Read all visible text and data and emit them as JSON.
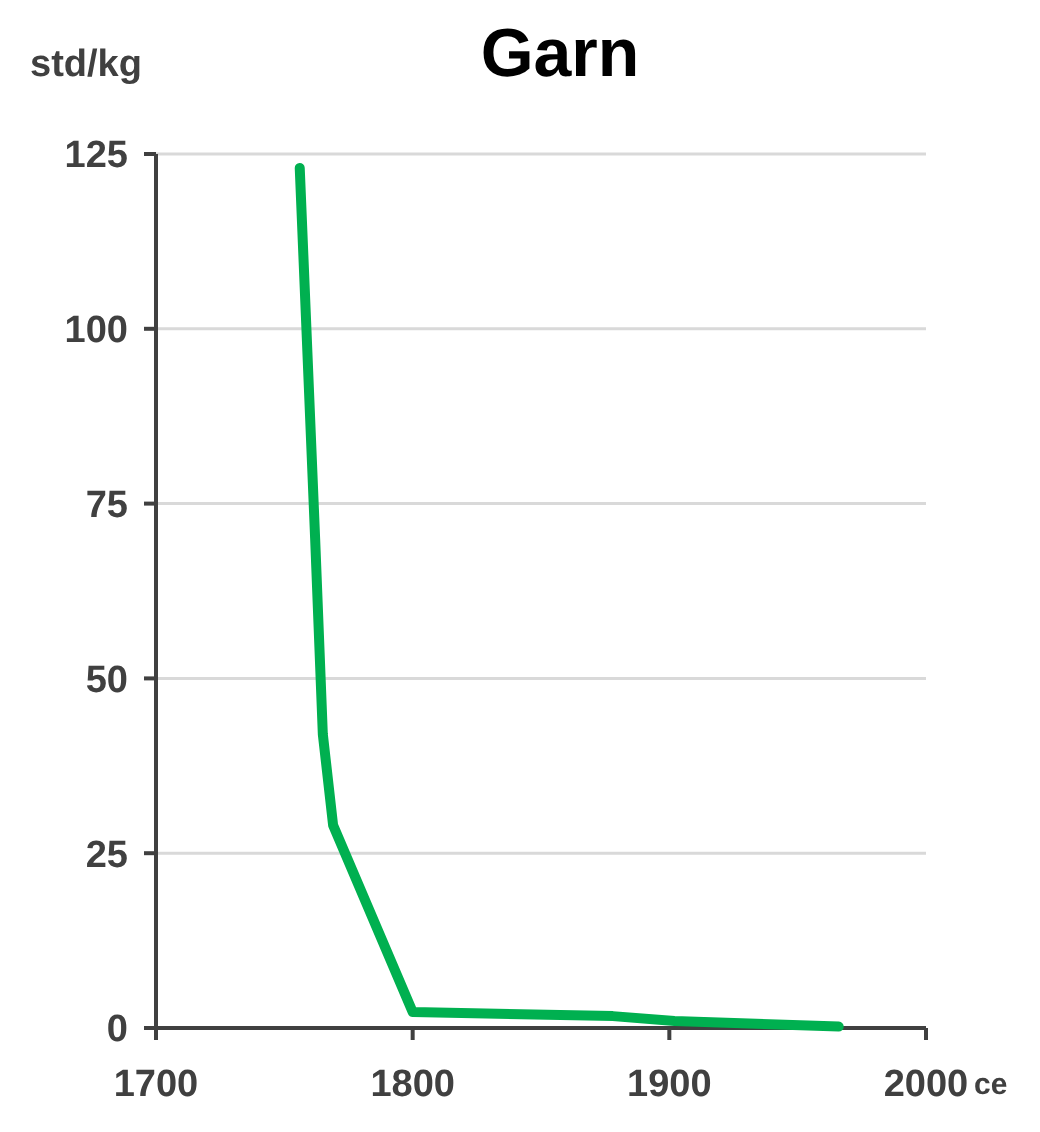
{
  "chart_data": {
    "type": "line",
    "title": "Garn",
    "xlabel": "ce",
    "ylabel": "std/kg",
    "x": [
      1756,
      1762,
      1765,
      1769,
      1800,
      1878,
      1902,
      1966
    ],
    "series": [
      {
        "color": "#00b050",
        "values": [
          123,
          70,
          42,
          29,
          2.3,
          1.7,
          1,
          0.2
        ]
      }
    ],
    "xlim": [
      1700,
      2000
    ],
    "xticks": [
      1700,
      1800,
      1900,
      2000
    ],
    "ylim": [
      0,
      125
    ],
    "yticks": [
      0,
      25,
      50,
      75,
      100,
      125
    ],
    "grid": "y",
    "marker": "none",
    "line_style": "solid"
  }
}
